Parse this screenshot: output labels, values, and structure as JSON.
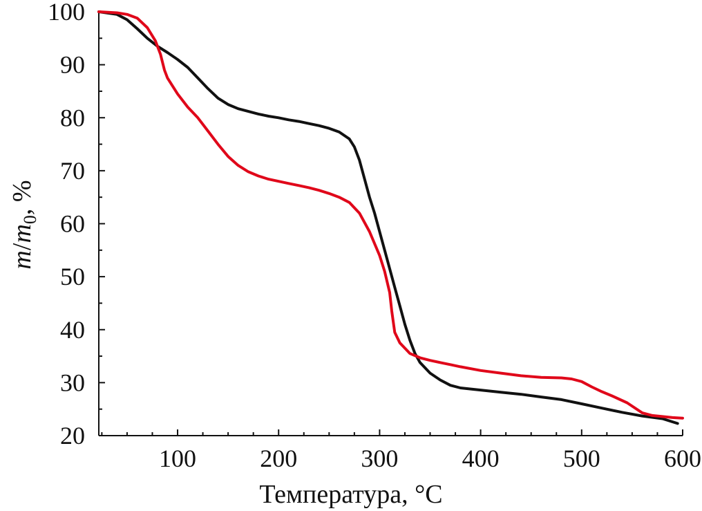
{
  "chart_data": {
    "type": "line",
    "title": "",
    "xlabel": "Температура, °C",
    "ylabel_parts": {
      "m1": "m",
      "slash": "/",
      "m2": "m",
      "sub": "0",
      "suffix": ", %"
    },
    "xlim": [
      22,
      600
    ],
    "ylim": [
      20,
      100
    ],
    "x_ticks": [
      100,
      200,
      300,
      400,
      500,
      600
    ],
    "x_minor_step": 25,
    "y_ticks": [
      20,
      30,
      40,
      50,
      60,
      70,
      80,
      90,
      100
    ],
    "y_minor_step": 5,
    "grid": false,
    "legend": "none",
    "series": [
      {
        "color": "#111111",
        "points": [
          [
            22,
            100
          ],
          [
            40,
            99.5
          ],
          [
            50,
            98.5
          ],
          [
            60,
            96.8
          ],
          [
            70,
            95
          ],
          [
            80,
            93.5
          ],
          [
            90,
            92.3
          ],
          [
            100,
            91
          ],
          [
            110,
            89.5
          ],
          [
            120,
            87.5
          ],
          [
            130,
            85.5
          ],
          [
            140,
            83.7
          ],
          [
            150,
            82.5
          ],
          [
            160,
            81.7
          ],
          [
            170,
            81.2
          ],
          [
            180,
            80.7
          ],
          [
            190,
            80.3
          ],
          [
            200,
            80
          ],
          [
            210,
            79.6
          ],
          [
            220,
            79.3
          ],
          [
            230,
            78.9
          ],
          [
            240,
            78.5
          ],
          [
            250,
            78
          ],
          [
            260,
            77.3
          ],
          [
            270,
            76
          ],
          [
            275,
            74.5
          ],
          [
            280,
            72
          ],
          [
            285,
            68.5
          ],
          [
            290,
            65
          ],
          [
            295,
            62
          ],
          [
            300,
            58.5
          ],
          [
            305,
            55
          ],
          [
            310,
            51.5
          ],
          [
            315,
            48
          ],
          [
            320,
            44.5
          ],
          [
            325,
            41
          ],
          [
            330,
            38
          ],
          [
            335,
            35.5
          ],
          [
            340,
            33.8
          ],
          [
            350,
            31.8
          ],
          [
            360,
            30.5
          ],
          [
            370,
            29.5
          ],
          [
            380,
            29
          ],
          [
            400,
            28.6
          ],
          [
            420,
            28.2
          ],
          [
            440,
            27.8
          ],
          [
            460,
            27.3
          ],
          [
            480,
            26.8
          ],
          [
            500,
            26
          ],
          [
            520,
            25.2
          ],
          [
            540,
            24.4
          ],
          [
            560,
            23.7
          ],
          [
            580,
            23.2
          ],
          [
            595,
            22.3
          ]
        ]
      },
      {
        "color": "#e0081a",
        "points": [
          [
            22,
            100
          ],
          [
            40,
            99.8
          ],
          [
            50,
            99.5
          ],
          [
            60,
            98.8
          ],
          [
            70,
            97
          ],
          [
            78,
            94.5
          ],
          [
            83,
            92
          ],
          [
            87,
            89
          ],
          [
            90,
            87.5
          ],
          [
            95,
            86
          ],
          [
            100,
            84.5
          ],
          [
            110,
            82
          ],
          [
            120,
            80
          ],
          [
            130,
            77.5
          ],
          [
            140,
            75
          ],
          [
            150,
            72.7
          ],
          [
            160,
            71
          ],
          [
            170,
            69.8
          ],
          [
            180,
            69
          ],
          [
            190,
            68.4
          ],
          [
            200,
            68
          ],
          [
            210,
            67.6
          ],
          [
            220,
            67.2
          ],
          [
            230,
            66.8
          ],
          [
            240,
            66.3
          ],
          [
            250,
            65.7
          ],
          [
            260,
            65
          ],
          [
            270,
            64
          ],
          [
            280,
            62
          ],
          [
            290,
            58.5
          ],
          [
            300,
            54
          ],
          [
            305,
            51
          ],
          [
            310,
            47
          ],
          [
            312,
            43.5
          ],
          [
            315,
            39.5
          ],
          [
            320,
            37.5
          ],
          [
            330,
            35.5
          ],
          [
            340,
            34.7
          ],
          [
            350,
            34.2
          ],
          [
            360,
            33.8
          ],
          [
            370,
            33.4
          ],
          [
            380,
            33
          ],
          [
            400,
            32.3
          ],
          [
            420,
            31.8
          ],
          [
            440,
            31.3
          ],
          [
            460,
            31
          ],
          [
            480,
            30.9
          ],
          [
            490,
            30.7
          ],
          [
            500,
            30.2
          ],
          [
            510,
            29.2
          ],
          [
            520,
            28.3
          ],
          [
            530,
            27.5
          ],
          [
            545,
            26.2
          ],
          [
            560,
            24.3
          ],
          [
            570,
            23.8
          ],
          [
            580,
            23.6
          ],
          [
            590,
            23.4
          ],
          [
            600,
            23.3
          ]
        ]
      }
    ]
  }
}
